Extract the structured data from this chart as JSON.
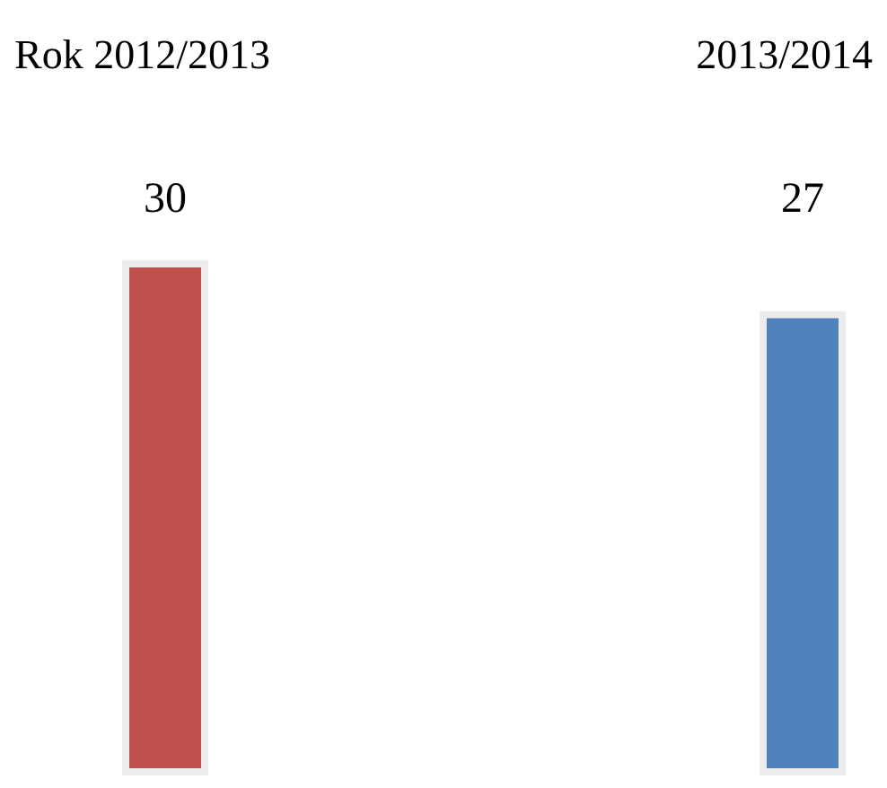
{
  "chart_data": {
    "type": "bar",
    "categories": [
      "Rok 2012/2013",
      "2013/2014"
    ],
    "values": [
      30,
      27
    ],
    "colors": [
      "#c0504d",
      "#4f81bd"
    ],
    "data_labels": true
  }
}
